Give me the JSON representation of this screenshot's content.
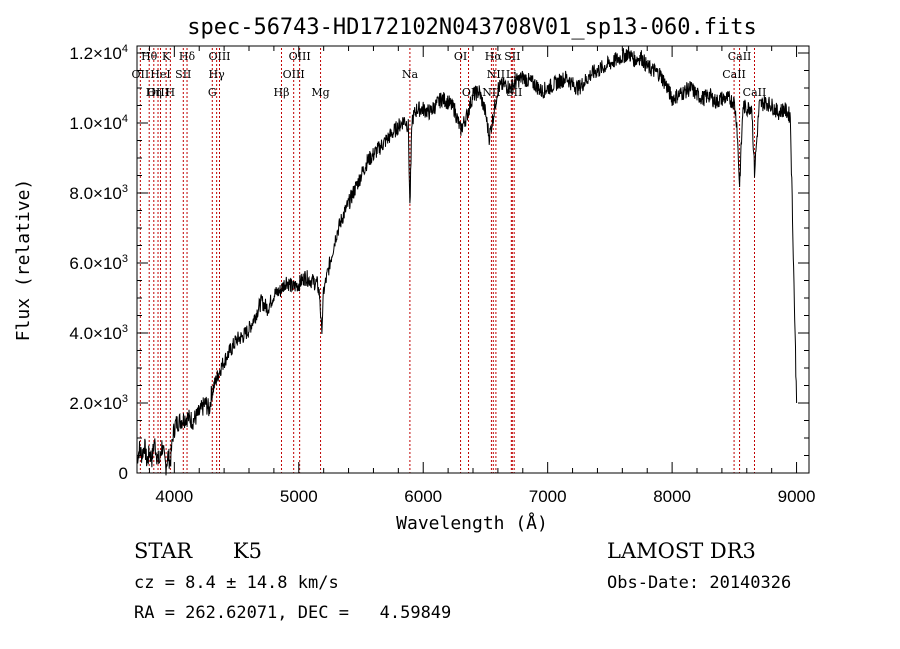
{
  "chart_data": {
    "type": "line",
    "title": "spec-56743-HD172102N043708V01_sp13-060.fits",
    "xlabel": "Wavelength (Å)",
    "ylabel": "Flux (relative)",
    "xlim": [
      3700,
      9100
    ],
    "ylim": [
      0,
      12200
    ],
    "x_ticks": [
      "4000",
      "5000",
      "6000",
      "7000",
      "8000",
      "9000"
    ],
    "y_ticks": [
      {
        "value": 0,
        "mant": "0",
        "exp": ""
      },
      {
        "value": 2000,
        "mant": "2.0×10",
        "exp": "3"
      },
      {
        "value": 4000,
        "mant": "4.0×10",
        "exp": "3"
      },
      {
        "value": 6000,
        "mant": "6.0×10",
        "exp": "3"
      },
      {
        "value": 8000,
        "mant": "8.0×10",
        "exp": "3"
      },
      {
        "value": 10000,
        "mant": "1.0×10",
        "exp": "4"
      },
      {
        "value": 12000,
        "mant": "1.2×10",
        "exp": "4"
      }
    ],
    "series": [
      {
        "color": "#000000",
        "x": [
          3700,
          3720,
          3740,
          3760,
          3780,
          3800,
          3820,
          3840,
          3860,
          3880,
          3900,
          3920,
          3933,
          3950,
          3968,
          3990,
          4010,
          4050,
          4100,
          4150,
          4200,
          4250,
          4280,
          4300,
          4330,
          4360,
          4400,
          4450,
          4500,
          4550,
          4600,
          4650,
          4700,
          4750,
          4800,
          4850,
          4900,
          4950,
          5000,
          5050,
          5100,
          5150,
          5170,
          5183,
          5200,
          5250,
          5300,
          5350,
          5400,
          5450,
          5500,
          5550,
          5600,
          5650,
          5700,
          5750,
          5800,
          5850,
          5880,
          5893,
          5910,
          5950,
          6000,
          6050,
          6100,
          6150,
          6200,
          6250,
          6300,
          6350,
          6400,
          6450,
          6500,
          6530,
          6563,
          6600,
          6650,
          6700,
          6750,
          6800,
          6850,
          6900,
          6950,
          7000,
          7050,
          7100,
          7150,
          7200,
          7250,
          7300,
          7350,
          7400,
          7450,
          7500,
          7550,
          7600,
          7650,
          7700,
          7750,
          7800,
          7850,
          7900,
          7950,
          8000,
          8050,
          8100,
          8150,
          8200,
          8250,
          8300,
          8350,
          8400,
          8450,
          8498,
          8520,
          8542,
          8570,
          8600,
          8640,
          8662,
          8700,
          8750,
          8800,
          8850,
          8900,
          8950,
          9000
        ],
        "y": [
          400,
          700,
          500,
          800,
          300,
          600,
          400,
          900,
          500,
          300,
          800,
          400,
          200,
          500,
          300,
          1100,
          1400,
          1500,
          1600,
          1500,
          1700,
          2000,
          1800,
          2300,
          2600,
          2900,
          3200,
          3500,
          3800,
          3900,
          4100,
          4500,
          4900,
          4700,
          5100,
          5200,
          5500,
          5300,
          5400,
          5600,
          5500,
          5400,
          5000,
          4000,
          5200,
          6000,
          6800,
          7300,
          7700,
          8100,
          8500,
          8900,
          9100,
          9300,
          9500,
          9700,
          9900,
          10100,
          9900,
          7600,
          10100,
          10400,
          10400,
          10300,
          10500,
          10700,
          10600,
          10400,
          9800,
          10200,
          10800,
          10900,
          10300,
          9600,
          10200,
          11000,
          11100,
          11000,
          11200,
          11300,
          11200,
          11100,
          10900,
          11000,
          11100,
          11200,
          11300,
          11100,
          11000,
          11200,
          11400,
          11500,
          11600,
          11700,
          11800,
          11900,
          12000,
          11800,
          11900,
          11600,
          11500,
          11400,
          11100,
          10700,
          10800,
          10900,
          11000,
          10800,
          10700,
          10800,
          10600,
          10700,
          10700,
          10600,
          10000,
          8200,
          10500,
          10400,
          10500,
          8600,
          10500,
          10600,
          10500,
          10300,
          10400,
          10200,
          2000
        ]
      }
    ],
    "lines": [
      {
        "label": "Hθ",
        "x": 3798,
        "row": 0
      },
      {
        "label": "K",
        "x": 3934,
        "row": 0
      },
      {
        "label": "Hδ",
        "x": 4102,
        "row": 0
      },
      {
        "label": "OIII",
        "x": 4363,
        "row": 0
      },
      {
        "label": "OIII",
        "x": 5007,
        "row": 0
      },
      {
        "label": "OI",
        "x": 6300,
        "row": 0
      },
      {
        "label": "Hα",
        "x": 6563,
        "row": 0
      },
      {
        "label": "SII",
        "x": 6716,
        "row": 0
      },
      {
        "label": "CaII",
        "x": 8542,
        "row": 0
      },
      {
        "label": "OII",
        "x": 3727,
        "row": 1
      },
      {
        "label": "HeI",
        "x": 3889,
        "row": 1
      },
      {
        "label": "SII",
        "x": 4072,
        "row": 1
      },
      {
        "label": "Hγ",
        "x": 4340,
        "row": 1
      },
      {
        "label": "OIII",
        "x": 4959,
        "row": 1
      },
      {
        "label": "Na",
        "x": 5893,
        "row": 1
      },
      {
        "label": "NII",
        "x": 6584,
        "row": 1
      },
      {
        "label": "Li",
        "x": 6708,
        "row": 1
      },
      {
        "label": "CaII",
        "x": 8498,
        "row": 1
      },
      {
        "label": "OIII",
        "x": 3869,
        "row": 2
      },
      {
        "label": "Hη",
        "x": 3835,
        "row": 2
      },
      {
        "label": "H",
        "x": 3968,
        "row": 2
      },
      {
        "label": "G",
        "x": 4305,
        "row": 2
      },
      {
        "label": "Hβ",
        "x": 4861,
        "row": 2
      },
      {
        "label": "Mg",
        "x": 5175,
        "row": 2
      },
      {
        "label": "OI",
        "x": 6364,
        "row": 2
      },
      {
        "label": "NII",
        "x": 6548,
        "row": 2
      },
      {
        "label": "SII",
        "x": 6731,
        "row": 2
      },
      {
        "label": "CaII",
        "x": 8662,
        "row": 2
      }
    ]
  },
  "info": {
    "class_label": "STAR",
    "subclass": "K5",
    "survey": "LAMOST DR3",
    "cz": "cz = 8.4 ± 14.8 km/s",
    "obs_date": "Obs-Date: 20140326",
    "radec": "RA = 262.62071, DEC =   4.59849"
  }
}
